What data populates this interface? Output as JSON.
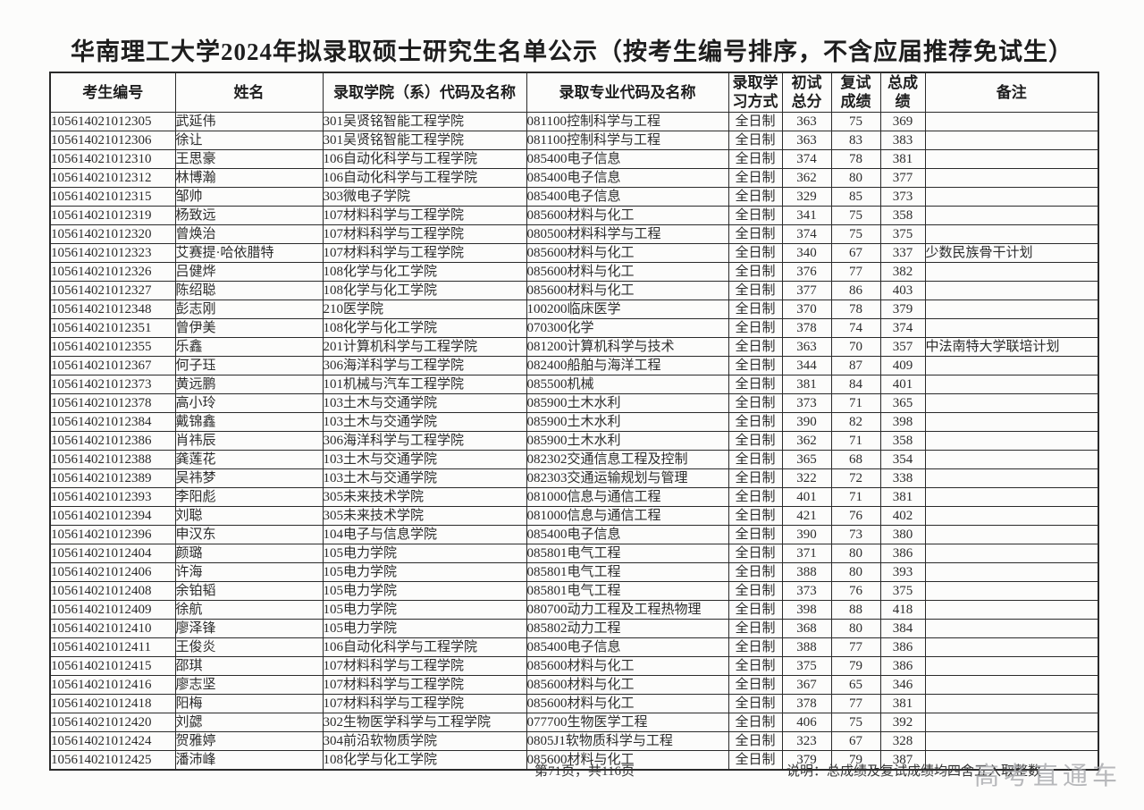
{
  "title": "华南理工大学2024年拟录取硕士研究生名单公示（按考生编号排序，不含应届推荐免试生）",
  "table": {
    "column_keys": [
      "exam-number",
      "name",
      "college",
      "major",
      "study-mode",
      "initial-score",
      "retest-score",
      "total-score",
      "remark"
    ],
    "headers": [
      "考生编号",
      "姓名",
      "录取学院（系）代码及名称",
      "录取专业代码及名称",
      "录取学\n习方式",
      "初试\n总分",
      "复试\n成绩",
      "总成\n绩",
      "备注"
    ],
    "rows": [
      [
        "105614021012305",
        "武延伟",
        "301吴贤铭智能工程学院",
        "081100控制科学与工程",
        "全日制",
        "363",
        "75",
        "369",
        ""
      ],
      [
        "105614021012306",
        "徐让",
        "301吴贤铭智能工程学院",
        "081100控制科学与工程",
        "全日制",
        "363",
        "83",
        "383",
        ""
      ],
      [
        "105614021012310",
        "王思豪",
        "106自动化科学与工程学院",
        "085400电子信息",
        "全日制",
        "374",
        "78",
        "381",
        ""
      ],
      [
        "105614021012312",
        "林博瀚",
        "106自动化科学与工程学院",
        "085400电子信息",
        "全日制",
        "362",
        "80",
        "377",
        ""
      ],
      [
        "105614021012315",
        "邹帅",
        "303微电子学院",
        "085400电子信息",
        "全日制",
        "329",
        "85",
        "373",
        ""
      ],
      [
        "105614021012319",
        "杨致远",
        "107材料科学与工程学院",
        "085600材料与化工",
        "全日制",
        "341",
        "75",
        "358",
        ""
      ],
      [
        "105614021012320",
        "曾焕治",
        "107材料科学与工程学院",
        "080500材料科学与工程",
        "全日制",
        "374",
        "75",
        "375",
        ""
      ],
      [
        "105614021012323",
        "艾赛提·哈依腊特",
        "107材料科学与工程学院",
        "085600材料与化工",
        "全日制",
        "340",
        "67",
        "337",
        "少数民族骨干计划"
      ],
      [
        "105614021012326",
        "吕健烨",
        "108化学与化工学院",
        "085600材料与化工",
        "全日制",
        "376",
        "77",
        "382",
        ""
      ],
      [
        "105614021012327",
        "陈绍聪",
        "108化学与化工学院",
        "085600材料与化工",
        "全日制",
        "377",
        "86",
        "403",
        ""
      ],
      [
        "105614021012348",
        "彭志刚",
        "210医学院",
        "100200临床医学",
        "全日制",
        "370",
        "78",
        "379",
        ""
      ],
      [
        "105614021012351",
        "曾伊美",
        "108化学与化工学院",
        "070300化学",
        "全日制",
        "378",
        "74",
        "374",
        ""
      ],
      [
        "105614021012355",
        "乐鑫",
        "201计算机科学与工程学院",
        "081200计算机科学与技术",
        "全日制",
        "363",
        "70",
        "357",
        "中法南特大学联培计划"
      ],
      [
        "105614021012367",
        "何子珏",
        "306海洋科学与工程学院",
        "082400船舶与海洋工程",
        "全日制",
        "344",
        "87",
        "409",
        ""
      ],
      [
        "105614021012373",
        "黄远鹏",
        "101机械与汽车工程学院",
        "085500机械",
        "全日制",
        "381",
        "84",
        "401",
        ""
      ],
      [
        "105614021012378",
        "高小玲",
        "103土木与交通学院",
        "085900土木水利",
        "全日制",
        "373",
        "71",
        "365",
        ""
      ],
      [
        "105614021012384",
        "戴锦鑫",
        "103土木与交通学院",
        "085900土木水利",
        "全日制",
        "390",
        "82",
        "398",
        ""
      ],
      [
        "105614021012386",
        "肖祎辰",
        "306海洋科学与工程学院",
        "085900土木水利",
        "全日制",
        "362",
        "71",
        "358",
        ""
      ],
      [
        "105614021012388",
        "龚莲花",
        "103土木与交通学院",
        "082302交通信息工程及控制",
        "全日制",
        "365",
        "68",
        "354",
        ""
      ],
      [
        "105614021012389",
        "吴祎梦",
        "103土木与交通学院",
        "082303交通运输规划与管理",
        "全日制",
        "322",
        "72",
        "338",
        ""
      ],
      [
        "105614021012393",
        "李阳彪",
        "305未来技术学院",
        "081000信息与通信工程",
        "全日制",
        "401",
        "71",
        "381",
        ""
      ],
      [
        "105614021012394",
        "刘聪",
        "305未来技术学院",
        "081000信息与通信工程",
        "全日制",
        "421",
        "76",
        "402",
        ""
      ],
      [
        "105614021012396",
        "申汉东",
        "104电子与信息学院",
        "085400电子信息",
        "全日制",
        "390",
        "73",
        "380",
        ""
      ],
      [
        "105614021012404",
        "颜璐",
        "105电力学院",
        "085801电气工程",
        "全日制",
        "371",
        "80",
        "386",
        ""
      ],
      [
        "105614021012406",
        "许海",
        "105电力学院",
        "085801电气工程",
        "全日制",
        "388",
        "80",
        "393",
        ""
      ],
      [
        "105614021012408",
        "余铂韬",
        "105电力学院",
        "085801电气工程",
        "全日制",
        "373",
        "76",
        "375",
        ""
      ],
      [
        "105614021012409",
        "徐航",
        "105电力学院",
        "080700动力工程及工程热物理",
        "全日制",
        "398",
        "88",
        "418",
        ""
      ],
      [
        "105614021012410",
        "廖泽锋",
        "105电力学院",
        "085802动力工程",
        "全日制",
        "368",
        "80",
        "384",
        ""
      ],
      [
        "105614021012411",
        "王俊炎",
        "106自动化科学与工程学院",
        "085400电子信息",
        "全日制",
        "388",
        "77",
        "386",
        ""
      ],
      [
        "105614021012415",
        "邵琪",
        "107材料科学与工程学院",
        "085600材料与化工",
        "全日制",
        "375",
        "79",
        "386",
        ""
      ],
      [
        "105614021012416",
        "廖志坚",
        "107材料科学与工程学院",
        "085600材料与化工",
        "全日制",
        "367",
        "65",
        "346",
        ""
      ],
      [
        "105614021012418",
        "阳梅",
        "107材料科学与工程学院",
        "085600材料与化工",
        "全日制",
        "378",
        "77",
        "381",
        ""
      ],
      [
        "105614021012420",
        "刘勰",
        "302生物医学科学与工程学院",
        "077700生物医学工程",
        "全日制",
        "406",
        "75",
        "392",
        ""
      ],
      [
        "105614021012424",
        "贺雅婷",
        "304前沿软物质学院",
        "0805J1软物质科学与工程",
        "全日制",
        "323",
        "67",
        "328",
        ""
      ],
      [
        "105614021012425",
        "潘沛峰",
        "108化学与化工学院",
        "085600材料与化工",
        "全日制",
        "379",
        "79",
        "387",
        ""
      ]
    ]
  },
  "footer": {
    "page_info": "第71页，共116页",
    "note": "说明：总成绩及复试成绩均四舍五入取整数",
    "watermark": "高考直通车"
  }
}
